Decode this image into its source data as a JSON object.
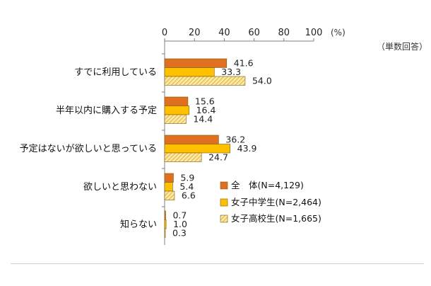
{
  "chart_data": {
    "type": "bar",
    "orientation": "horizontal",
    "unit_label": "(%)",
    "note": "（単数回答）",
    "xlim": [
      0,
      100
    ],
    "xticks": [
      0,
      20,
      40,
      60,
      80,
      100
    ],
    "grid": false,
    "legend_position": "bottom-right",
    "categories": [
      "すでに利用している",
      "半年以内に購入する予定",
      "予定はないが欲しいと思っている",
      "欲しいと思わない",
      "知らない"
    ],
    "series": [
      {
        "name": "全　体(N=4,129)",
        "values": [
          41.6,
          15.6,
          36.2,
          5.9,
          0.7
        ],
        "labels": [
          "41.6",
          "15.6",
          "36.2",
          "5.9",
          "0.7"
        ],
        "color": "#E07020",
        "pattern": "solid"
      },
      {
        "name": "女子中学生(N=2,464)",
        "values": [
          33.3,
          16.4,
          43.9,
          5.4,
          1.0
        ],
        "labels": [
          "33.3",
          "16.4",
          "43.9",
          "5.4",
          "1.0"
        ],
        "color": "#FFC000",
        "pattern": "solid"
      },
      {
        "name": "女子高校生(N=1,665)",
        "values": [
          54.0,
          14.4,
          24.7,
          6.6,
          0.3
        ],
        "labels": [
          "54.0",
          "14.4",
          "24.7",
          "6.6",
          "0.3"
        ],
        "color": "#F5D76E",
        "pattern": "hatched"
      }
    ]
  }
}
